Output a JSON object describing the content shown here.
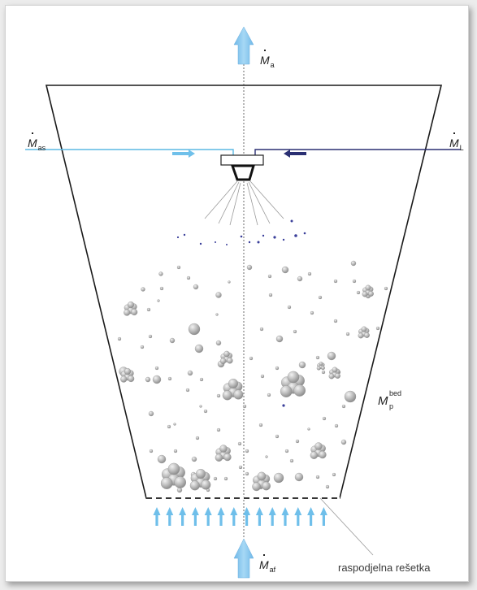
{
  "labels": {
    "air_out": {
      "symbol": "M",
      "sub": "a"
    },
    "atomizing_air": {
      "symbol": "M",
      "sub": "as"
    },
    "liquid": {
      "symbol": "M",
      "sub": "L"
    },
    "fluidizing_air": {
      "symbol": "M",
      "sub": "af"
    },
    "bed_mass": {
      "symbol": "M",
      "sup": "bed",
      "sub": "p"
    },
    "grate": "raspodjelna rešetka"
  },
  "colors": {
    "atomizing_air_line": "#5bb8e4",
    "liquid_line": "#2a2f72",
    "arrow_fill": "#8ccbf0",
    "vessel": "#1a1a1a",
    "particle": "#b4b4b4",
    "droplet": "#3a3f9a"
  },
  "icons": {
    "gas_flow": "up-arrow-icon",
    "nozzle": "spray-nozzle-icon",
    "particles": "granule-icon"
  }
}
